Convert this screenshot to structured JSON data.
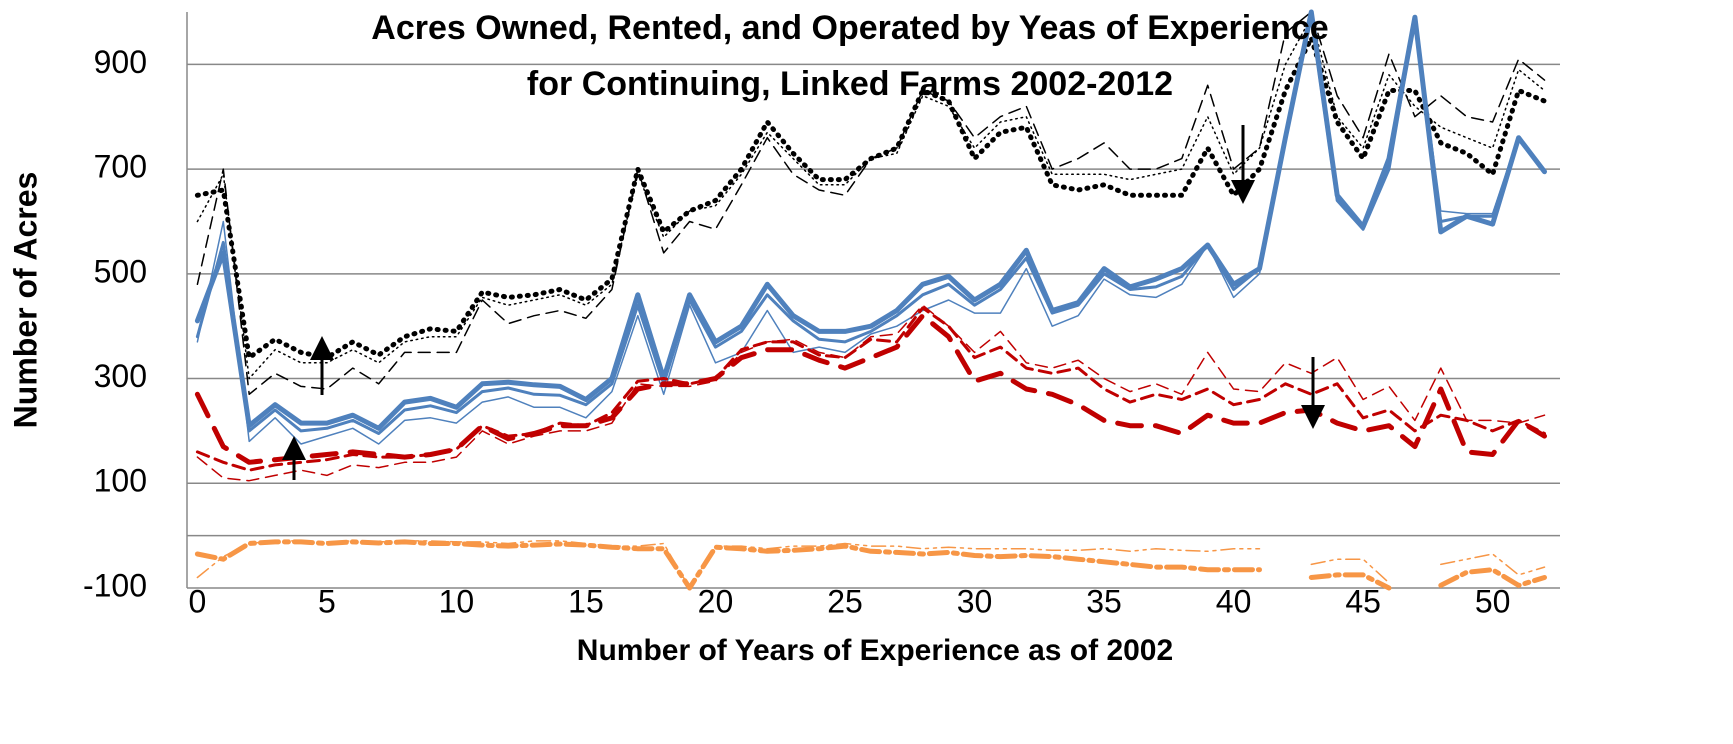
{
  "chart_data": {
    "type": "line",
    "title": [
      "Acres Owned, Rented, and Operated by Yeas of Experience",
      "for Continuing, Linked Farms 2002-2012"
    ],
    "x_label": "Number of Years of Experience as of 2002",
    "y_label": "Number of Acres",
    "x": [
      0,
      1,
      2,
      3,
      4,
      5,
      6,
      7,
      8,
      9,
      10,
      11,
      12,
      13,
      14,
      15,
      16,
      17,
      18,
      19,
      20,
      21,
      22,
      23,
      24,
      25,
      26,
      27,
      28,
      29,
      30,
      31,
      32,
      33,
      34,
      35,
      36,
      37,
      38,
      39,
      40,
      41,
      42,
      43,
      44,
      45,
      46,
      47,
      48,
      49,
      50,
      51,
      52
    ],
    "xlim": [
      -0.4,
      52.6
    ],
    "xticks": [
      0,
      5,
      10,
      15,
      20,
      25,
      30,
      35,
      40,
      45,
      50
    ],
    "ylim": [
      -100,
      1000
    ],
    "yticks": [
      -100,
      100,
      300,
      500,
      700,
      900
    ],
    "grid": true,
    "series": [
      {
        "color": "#000000",
        "line_style": "dotted",
        "weight": "thick",
        "values": [
          650,
          660,
          340,
          375,
          350,
          340,
          370,
          345,
          380,
          395,
          390,
          465,
          455,
          460,
          470,
          450,
          490,
          700,
          580,
          620,
          640,
          700,
          790,
          730,
          680,
          680,
          720,
          740,
          850,
          830,
          720,
          770,
          780,
          670,
          660,
          670,
          650,
          650,
          650,
          740,
          650,
          700,
          850,
          950,
          790,
          720,
          850,
          850,
          750,
          730,
          690,
          850,
          830
        ]
      },
      {
        "color": "#000000",
        "line_style": "dotted",
        "weight": "thin",
        "values": [
          600,
          690,
          300,
          355,
          330,
          330,
          355,
          330,
          370,
          380,
          380,
          455,
          440,
          450,
          460,
          440,
          480,
          690,
          570,
          620,
          630,
          690,
          770,
          720,
          670,
          670,
          720,
          730,
          840,
          820,
          740,
          790,
          800,
          690,
          690,
          690,
          680,
          690,
          700,
          800,
          690,
          740,
          900,
          990,
          800,
          740,
          880,
          820,
          780,
          760,
          740,
          890,
          850
        ]
      },
      {
        "color": "#000000",
        "line_style": "dashed",
        "weight": "thin",
        "values": [
          480,
          700,
          270,
          310,
          285,
          280,
          320,
          290,
          350,
          350,
          350,
          450,
          405,
          420,
          430,
          415,
          470,
          700,
          540,
          600,
          585,
          670,
          760,
          690,
          660,
          650,
          720,
          740,
          850,
          830,
          760,
          800,
          820,
          700,
          720,
          750,
          700,
          700,
          720,
          860,
          700,
          740,
          960,
          1000,
          840,
          760,
          920,
          800,
          840,
          800,
          790,
          910,
          870
        ]
      },
      {
        "color": "#4f81bd",
        "line_style": "solid",
        "weight": "thick",
        "values": [
          410,
          540,
          210,
          250,
          215,
          215,
          230,
          205,
          255,
          262,
          245,
          290,
          293,
          288,
          285,
          260,
          300,
          460,
          300,
          460,
          370,
          400,
          480,
          420,
          390,
          390,
          400,
          430,
          480,
          495,
          450,
          480,
          545,
          430,
          445,
          510,
          475,
          490,
          510,
          555,
          480,
          510,
          760,
          1000,
          650,
          590,
          720,
          990,
          580,
          610,
          595,
          760,
          695
        ]
      },
      {
        "color": "#4f81bd",
        "line_style": "solid",
        "weight": "medium",
        "values": [
          380,
          560,
          200,
          240,
          200,
          205,
          220,
          195,
          240,
          248,
          235,
          275,
          282,
          270,
          268,
          250,
          290,
          440,
          290,
          450,
          360,
          390,
          460,
          410,
          375,
          370,
          390,
          420,
          460,
          480,
          440,
          470,
          530,
          425,
          440,
          500,
          470,
          475,
          495,
          555,
          470,
          510,
          760,
          990,
          640,
          585,
          700,
          990,
          600,
          610,
          610,
          760,
          695
        ]
      },
      {
        "color": "#4f81bd",
        "line_style": "solid",
        "weight": "thin",
        "values": [
          370,
          600,
          180,
          225,
          175,
          190,
          205,
          175,
          220,
          225,
          215,
          255,
          265,
          245,
          245,
          225,
          275,
          420,
          270,
          440,
          330,
          350,
          430,
          350,
          360,
          350,
          385,
          400,
          430,
          450,
          425,
          425,
          510,
          400,
          420,
          490,
          460,
          455,
          480,
          555,
          455,
          500,
          760,
          990,
          640,
          590,
          700,
          990,
          620,
          615,
          615,
          760,
          695
        ]
      },
      {
        "color": "#c00000",
        "line_style": "dashed",
        "weight": "thick",
        "values": [
          270,
          170,
          140,
          145,
          150,
          155,
          160,
          155,
          150,
          155,
          165,
          210,
          185,
          195,
          210,
          210,
          225,
          280,
          290,
          290,
          300,
          340,
          355,
          355,
          335,
          320,
          340,
          360,
          420,
          380,
          295,
          310,
          280,
          270,
          250,
          220,
          210,
          210,
          195,
          230,
          215,
          215,
          235,
          240,
          215,
          200,
          210,
          170,
          280,
          160,
          155,
          220,
          190
        ]
      },
      {
        "color": "#c00000",
        "line_style": "dashed",
        "weight": "medium",
        "values": [
          160,
          140,
          125,
          135,
          140,
          145,
          155,
          150,
          150,
          155,
          165,
          210,
          190,
          195,
          215,
          210,
          235,
          295,
          300,
          290,
          300,
          355,
          370,
          370,
          345,
          340,
          375,
          370,
          435,
          400,
          340,
          360,
          320,
          310,
          320,
          280,
          255,
          270,
          260,
          280,
          250,
          260,
          290,
          270,
          290,
          225,
          240,
          200,
          230,
          220,
          200,
          220,
          195
        ]
      },
      {
        "color": "#c00000",
        "line_style": "dashed",
        "weight": "thin",
        "values": [
          150,
          110,
          105,
          115,
          125,
          115,
          135,
          130,
          140,
          140,
          150,
          200,
          175,
          190,
          200,
          200,
          215,
          290,
          285,
          285,
          295,
          350,
          370,
          375,
          350,
          340,
          380,
          385,
          440,
          400,
          350,
          390,
          330,
          320,
          335,
          300,
          275,
          290,
          270,
          350,
          280,
          275,
          330,
          310,
          340,
          260,
          285,
          220,
          320,
          220,
          220,
          215,
          230
        ]
      },
      {
        "color": "#f79646",
        "line_style": "dashdot",
        "weight": "thick",
        "values": [
          -35,
          -45,
          -15,
          -12,
          -12,
          -15,
          -12,
          -14,
          -12,
          -15,
          -15,
          -18,
          -20,
          -18,
          -16,
          -18,
          -22,
          -25,
          -25,
          -100,
          -22,
          -25,
          -30,
          -28,
          -25,
          -20,
          -30,
          -32,
          -35,
          -32,
          -38,
          -40,
          -38,
          -40,
          -45,
          -50,
          -55,
          -60,
          -60,
          -65,
          -65,
          -65,
          null,
          -80,
          -75,
          -75,
          -100,
          null,
          -95,
          -70,
          -65,
          -95,
          -80
        ]
      },
      {
        "color": "#f79646",
        "line_style": "dashdotdot",
        "weight": "thin",
        "values": [
          -80,
          -40,
          -15,
          -10,
          -10,
          -12,
          -10,
          -12,
          -10,
          -10,
          -12,
          -12,
          -15,
          -10,
          -10,
          -15,
          -20,
          -20,
          -15,
          -100,
          -20,
          -20,
          -25,
          -20,
          -20,
          -15,
          -20,
          -20,
          -25,
          -22,
          -25,
          -25,
          -25,
          -28,
          -28,
          -25,
          -30,
          -25,
          -28,
          -30,
          -25,
          -25,
          null,
          -55,
          -45,
          -45,
          -90,
          null,
          -55,
          -45,
          -35,
          -75,
          -60
        ]
      }
    ]
  }
}
